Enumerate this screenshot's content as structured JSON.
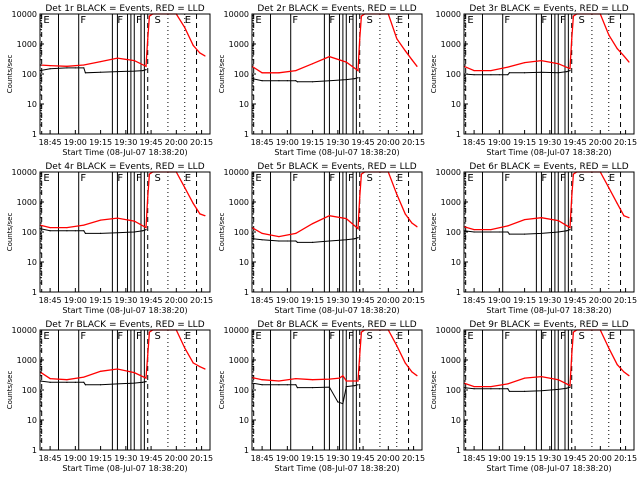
{
  "colors": {
    "background": "#ffffff",
    "axis": "#000000",
    "events": "#000000",
    "lld": "#ff0000"
  },
  "chart_data": [
    {
      "type": "line",
      "title": "Det 1r BLACK = Events, RED = LLD",
      "xlabel": "Start Time (08-Jul-07 18:38:20)",
      "ylabel": "Counts/sec",
      "xlim": [
        "18:39",
        "20:20"
      ],
      "ylim": [
        1,
        10000
      ],
      "ylog": true,
      "grid": false,
      "xtick_labels": [
        "18:45",
        "19:00",
        "19:15",
        "19:30",
        "19:45",
        "20:00",
        "20:15"
      ],
      "ytick_labels": [
        "1",
        "10",
        "100",
        "1000",
        "10000"
      ],
      "annotations": [
        "E",
        "F",
        "F",
        "F",
        "S",
        "E"
      ],
      "series": [
        {
          "color": "#000000",
          "x": [
            "18:39",
            "18:45",
            "18:55",
            "19:00",
            "19:05",
            "19:06",
            "19:15",
            "19:25",
            "19:35",
            "19:40",
            "19:42"
          ],
          "values": [
            130,
            150,
            160,
            160,
            160,
            110,
            115,
            120,
            125,
            130,
            140
          ]
        },
        {
          "color": "#ff0000",
          "x": [
            "18:39",
            "18:45",
            "18:55",
            "19:05",
            "19:15",
            "19:25",
            "19:35",
            "19:42",
            "19:43",
            "19:44",
            "19:46",
            "19:55",
            "20:00",
            "20:05",
            "20:10",
            "20:14",
            "20:17"
          ],
          "values": [
            200,
            190,
            180,
            200,
            260,
            340,
            280,
            180,
            1400,
            8500,
            10000,
            10000,
            10000,
            3500,
            900,
            500,
            400
          ]
        }
      ]
    },
    {
      "type": "line",
      "title": "Det 2r BLACK = Events, RED = LLD",
      "xlabel": "Start Time (08-Jul-07 18:38:20)",
      "ylabel": "Counts/sec",
      "xlim": [
        "18:39",
        "20:20"
      ],
      "ylim": [
        1,
        10000
      ],
      "ylog": true,
      "grid": false,
      "xtick_labels": [
        "18:45",
        "19:00",
        "19:15",
        "19:30",
        "19:45",
        "20:00",
        "20:15"
      ],
      "ytick_labels": [
        "1",
        "10",
        "100",
        "1000",
        "10000"
      ],
      "annotations": [
        "E",
        "F",
        "F",
        "F",
        "S",
        "E"
      ],
      "series": [
        {
          "color": "#000000",
          "x": [
            "18:39",
            "18:45",
            "18:55",
            "19:00",
            "19:05",
            "19:06",
            "19:15",
            "19:25",
            "19:35",
            "19:40",
            "19:42"
          ],
          "values": [
            70,
            60,
            60,
            60,
            60,
            55,
            55,
            60,
            65,
            70,
            75
          ]
        },
        {
          "color": "#ff0000",
          "x": [
            "18:39",
            "18:45",
            "18:55",
            "19:05",
            "19:15",
            "19:25",
            "19:35",
            "19:42",
            "19:43",
            "19:44",
            "19:46",
            "19:55",
            "20:00",
            "20:05",
            "20:10",
            "20:14",
            "20:17"
          ],
          "values": [
            180,
            110,
            110,
            130,
            220,
            380,
            250,
            130,
            1400,
            8500,
            10000,
            10000,
            10000,
            1500,
            600,
            300,
            180
          ]
        }
      ]
    },
    {
      "type": "line",
      "title": "Det 3r BLACK = Events, RED = LLD",
      "xlabel": "Start Time (08-Jul-07 18:38:20)",
      "ylabel": "Counts/sec",
      "xlim": [
        "18:39",
        "20:20"
      ],
      "ylim": [
        1,
        10000
      ],
      "ylog": true,
      "grid": false,
      "xtick_labels": [
        "18:45",
        "19:00",
        "19:15",
        "19:30",
        "19:45",
        "20:00",
        "20:15"
      ],
      "ytick_labels": [
        "1",
        "10",
        "100",
        "1000",
        "10000"
      ],
      "annotations": [
        "E",
        "F",
        "F",
        "F",
        "S",
        "E"
      ],
      "series": [
        {
          "color": "#000000",
          "x": [
            "18:39",
            "18:45",
            "18:55",
            "19:00",
            "19:05",
            "19:06",
            "19:15",
            "19:25",
            "19:35",
            "19:40",
            "19:42"
          ],
          "values": [
            100,
            95,
            95,
            95,
            95,
            110,
            110,
            115,
            110,
            120,
            130
          ]
        },
        {
          "color": "#ff0000",
          "x": [
            "18:39",
            "18:45",
            "18:55",
            "19:05",
            "19:15",
            "19:25",
            "19:35",
            "19:42",
            "19:43",
            "19:44",
            "19:46",
            "19:55",
            "20:00",
            "20:05",
            "20:10",
            "20:14",
            "20:17"
          ],
          "values": [
            180,
            130,
            130,
            170,
            240,
            280,
            220,
            150,
            1400,
            8500,
            10000,
            10000,
            10000,
            2000,
            700,
            400,
            250
          ]
        }
      ]
    },
    {
      "type": "line",
      "title": "Det 4r BLACK = Events, RED = LLD",
      "xlabel": "Start Time (08-Jul-07 18:38:20)",
      "ylabel": "Counts/sec",
      "xlim": [
        "18:39",
        "20:20"
      ],
      "ylim": [
        1,
        10000
      ],
      "ylog": true,
      "grid": false,
      "xtick_labels": [
        "18:45",
        "19:00",
        "19:15",
        "19:30",
        "19:45",
        "20:00",
        "20:15"
      ],
      "ytick_labels": [
        "1",
        "10",
        "100",
        "1000",
        "10000"
      ],
      "annotations": [
        "E",
        "F",
        "F",
        "F",
        "S",
        "E"
      ],
      "series": [
        {
          "color": "#000000",
          "x": [
            "18:39",
            "18:45",
            "18:55",
            "19:00",
            "19:05",
            "19:06",
            "19:15",
            "19:25",
            "19:35",
            "19:40",
            "19:42"
          ],
          "values": [
            130,
            110,
            110,
            110,
            110,
            90,
            90,
            95,
            100,
            110,
            120
          ]
        },
        {
          "color": "#ff0000",
          "x": [
            "18:39",
            "18:45",
            "18:55",
            "19:05",
            "19:15",
            "19:25",
            "19:35",
            "19:42",
            "19:43",
            "19:44",
            "19:46",
            "19:55",
            "20:00",
            "20:05",
            "20:10",
            "20:14",
            "20:17"
          ],
          "values": [
            170,
            140,
            140,
            170,
            250,
            290,
            230,
            140,
            1400,
            8500,
            10000,
            10000,
            10000,
            3000,
            900,
            400,
            350
          ]
        }
      ]
    },
    {
      "type": "line",
      "title": "Det 5r BLACK = Events, RED = LLD",
      "xlabel": "Start Time (08-Jul-07 18:38:20)",
      "ylabel": "Counts/sec",
      "xlim": [
        "18:39",
        "20:20"
      ],
      "ylim": [
        1,
        10000
      ],
      "ylog": true,
      "grid": false,
      "xtick_labels": [
        "18:45",
        "19:00",
        "19:15",
        "19:30",
        "19:45",
        "20:00",
        "20:15"
      ],
      "ytick_labels": [
        "1",
        "10",
        "100",
        "1000",
        "10000"
      ],
      "annotations": [
        "E",
        "F",
        "F",
        "F",
        "S",
        "E"
      ],
      "series": [
        {
          "color": "#000000",
          "x": [
            "18:39",
            "18:45",
            "18:55",
            "19:00",
            "19:05",
            "19:06",
            "19:15",
            "19:25",
            "19:35",
            "19:40",
            "19:42"
          ],
          "values": [
            60,
            55,
            50,
            50,
            50,
            45,
            45,
            50,
            55,
            60,
            65
          ]
        },
        {
          "color": "#ff0000",
          "x": [
            "18:39",
            "18:45",
            "18:55",
            "19:05",
            "19:15",
            "19:25",
            "19:35",
            "19:42",
            "19:43",
            "19:44",
            "19:46",
            "19:55",
            "20:00",
            "20:05",
            "20:10",
            "20:14",
            "20:17"
          ],
          "values": [
            140,
            90,
            70,
            90,
            190,
            350,
            280,
            130,
            1400,
            8500,
            10000,
            10000,
            10000,
            1800,
            400,
            200,
            150
          ]
        }
      ]
    },
    {
      "type": "line",
      "title": "Det 6r BLACK = Events, RED = LLD",
      "xlabel": "Start Time (08-Jul-07 18:38:20)",
      "ylabel": "Counts/sec",
      "xlim": [
        "18:39",
        "20:20"
      ],
      "ylim": [
        1,
        10000
      ],
      "ylog": true,
      "grid": false,
      "xtick_labels": [
        "18:45",
        "19:00",
        "19:15",
        "19:30",
        "19:45",
        "20:00",
        "20:15"
      ],
      "ytick_labels": [
        "1",
        "10",
        "100",
        "1000",
        "10000"
      ],
      "annotations": [
        "E",
        "F",
        "F",
        "F",
        "S",
        "E"
      ],
      "series": [
        {
          "color": "#000000",
          "x": [
            "18:39",
            "18:45",
            "18:55",
            "19:00",
            "19:05",
            "19:06",
            "19:15",
            "19:25",
            "19:35",
            "19:40",
            "19:42"
          ],
          "values": [
            110,
            100,
            100,
            100,
            100,
            85,
            85,
            90,
            100,
            110,
            120
          ]
        },
        {
          "color": "#ff0000",
          "x": [
            "18:39",
            "18:45",
            "18:55",
            "19:05",
            "19:15",
            "19:25",
            "19:35",
            "19:42",
            "19:43",
            "19:44",
            "19:46",
            "19:55",
            "20:00",
            "20:05",
            "20:10",
            "20:14",
            "20:17"
          ],
          "values": [
            150,
            120,
            120,
            160,
            260,
            300,
            240,
            140,
            1400,
            8500,
            10000,
            10000,
            10000,
            3000,
            900,
            350,
            300
          ]
        }
      ]
    },
    {
      "type": "line",
      "title": "Det 7r BLACK = Events, RED = LLD",
      "xlabel": "Start Time (08-Jul-07 18:38:20)",
      "ylabel": "Counts/sec",
      "xlim": [
        "18:39",
        "20:20"
      ],
      "ylim": [
        1,
        10000
      ],
      "ylog": true,
      "grid": false,
      "xtick_labels": [
        "18:45",
        "19:00",
        "19:15",
        "19:30",
        "19:45",
        "20:00",
        "20:15"
      ],
      "ytick_labels": [
        "1",
        "10",
        "100",
        "1000",
        "10000"
      ],
      "annotations": [
        "E",
        "F",
        "F",
        "F",
        "S",
        "E"
      ],
      "series": [
        {
          "color": "#000000",
          "x": [
            "18:39",
            "18:45",
            "18:55",
            "19:00",
            "19:05",
            "19:06",
            "19:15",
            "19:25",
            "19:35",
            "19:40",
            "19:42"
          ],
          "values": [
            200,
            180,
            180,
            180,
            180,
            150,
            150,
            160,
            170,
            180,
            190
          ]
        },
        {
          "color": "#ff0000",
          "x": [
            "18:39",
            "18:45",
            "18:55",
            "19:05",
            "19:15",
            "19:25",
            "19:35",
            "19:42",
            "19:43",
            "19:44",
            "19:46",
            "19:55",
            "20:00",
            "20:05",
            "20:10",
            "20:14",
            "20:17"
          ],
          "values": [
            400,
            240,
            220,
            270,
            420,
            500,
            380,
            250,
            1400,
            8500,
            10000,
            10000,
            10000,
            2500,
            800,
            600,
            500
          ]
        }
      ]
    },
    {
      "type": "line",
      "title": "Det 8r BLACK = Events, RED = LLD",
      "xlabel": "Start Time (08-Jul-07 18:38:20)",
      "ylabel": "Counts/sec",
      "xlim": [
        "18:39",
        "20:20"
      ],
      "ylim": [
        1,
        10000
      ],
      "ylog": true,
      "grid": false,
      "xtick_labels": [
        "18:45",
        "19:00",
        "19:15",
        "19:30",
        "19:45",
        "20:00",
        "20:15"
      ],
      "ytick_labels": [
        "1",
        "10",
        "100",
        "1000",
        "10000"
      ],
      "annotations": [
        "E",
        "F",
        "F",
        "F",
        "S",
        "E"
      ],
      "series": [
        {
          "color": "#000000",
          "x": [
            "18:39",
            "18:45",
            "18:55",
            "19:00",
            "19:05",
            "19:06",
            "19:15",
            "19:25",
            "19:30",
            "19:33",
            "19:35",
            "19:40",
            "19:42"
          ],
          "values": [
            170,
            150,
            150,
            150,
            150,
            120,
            120,
            125,
            40,
            35,
            130,
            140,
            150
          ]
        },
        {
          "color": "#ff0000",
          "x": [
            "18:39",
            "18:45",
            "18:55",
            "19:05",
            "19:15",
            "19:25",
            "19:31",
            "19:33",
            "19:35",
            "19:42",
            "19:43",
            "19:44",
            "19:46",
            "19:55",
            "20:00",
            "20:05",
            "20:10",
            "20:14",
            "20:17"
          ],
          "values": [
            260,
            220,
            200,
            240,
            220,
            230,
            250,
            300,
            200,
            200,
            1400,
            8500,
            10000,
            10000,
            10000,
            3000,
            800,
            400,
            300
          ]
        }
      ]
    },
    {
      "type": "line",
      "title": "Det 9r BLACK = Events, RED = LLD",
      "xlabel": "Start Time (08-Jul-07 18:38:20)",
      "ylabel": "Counts/sec",
      "xlim": [
        "18:39",
        "20:20"
      ],
      "ylim": [
        1,
        10000
      ],
      "ylog": true,
      "grid": false,
      "xtick_labels": [
        "18:45",
        "19:00",
        "19:15",
        "19:30",
        "19:45",
        "20:00",
        "20:15"
      ],
      "ytick_labels": [
        "1",
        "10",
        "100",
        "1000",
        "10000"
      ],
      "annotations": [
        "E",
        "F",
        "F",
        "F",
        "S",
        "E"
      ],
      "series": [
        {
          "color": "#000000",
          "x": [
            "18:39",
            "18:45",
            "18:55",
            "19:00",
            "19:05",
            "19:06",
            "19:15",
            "19:25",
            "19:35",
            "19:40",
            "19:42"
          ],
          "values": [
            120,
            110,
            110,
            110,
            110,
            90,
            90,
            95,
            105,
            115,
            125
          ]
        },
        {
          "color": "#ff0000",
          "x": [
            "18:39",
            "18:45",
            "18:55",
            "19:05",
            "19:15",
            "19:25",
            "19:35",
            "19:42",
            "19:43",
            "19:44",
            "19:46",
            "19:55",
            "20:00",
            "20:05",
            "20:10",
            "20:14",
            "20:17"
          ],
          "values": [
            170,
            130,
            130,
            160,
            250,
            280,
            220,
            140,
            1400,
            8500,
            10000,
            10000,
            10000,
            2500,
            700,
            400,
            300
          ]
        }
      ]
    }
  ]
}
